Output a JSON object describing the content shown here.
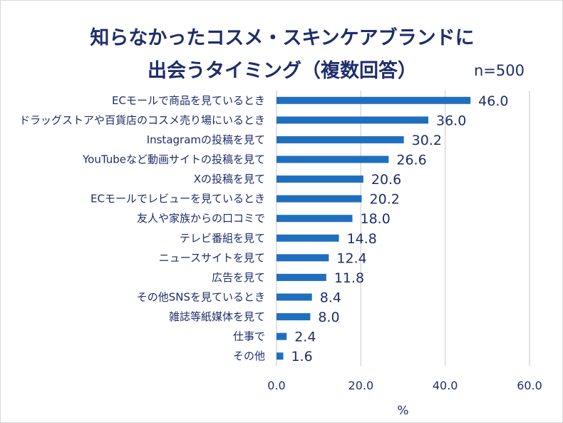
{
  "chart_data": {
    "type": "bar",
    "orientation": "horizontal",
    "title_line1": "知らなかったコスメ・スキンケアブランドに",
    "title_line2": "出会うタイミング（複数回答）",
    "sample_size": "n=500",
    "categories": [
      "ECモールで商品を見ているとき",
      "ドラッグストアや百貨店のコスメ売り場にいるとき",
      "Instagramの投稿を見て",
      "YouTubeなど動画サイトの投稿を見て",
      "Xの投稿を見て",
      "ECモールでレビューを見ているとき",
      "友人や家族からの口コミで",
      "テレビ番組を見て",
      "ニュースサイトを見て",
      "広告を見て",
      "その他SNSを見ているとき",
      "雑誌等紙媒体を見て",
      "仕事で",
      "その他"
    ],
    "values": [
      46.0,
      36.0,
      30.2,
      26.6,
      20.6,
      20.2,
      18.0,
      14.8,
      12.4,
      11.8,
      8.4,
      8.0,
      2.4,
      1.6
    ],
    "value_labels": [
      "46.0",
      "36.0",
      "30.2",
      "26.6",
      "20.6",
      "20.2",
      "18.0",
      "14.8",
      "12.4",
      "11.8",
      "8.4",
      "8.0",
      "2.4",
      "1.6"
    ],
    "xlim": [
      0,
      60
    ],
    "x_ticks": [
      "0.0",
      "20.0",
      "40.0",
      "60.0"
    ],
    "xlabel": "%",
    "grid": true,
    "bar_color": "#1f6fbf"
  }
}
